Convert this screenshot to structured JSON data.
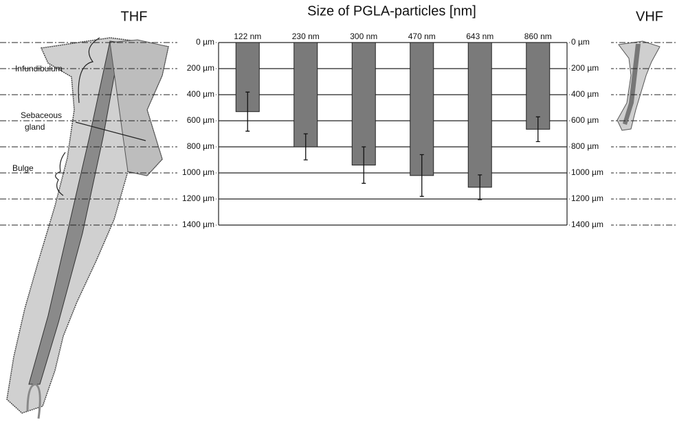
{
  "chart_data": {
    "type": "bar",
    "title": "Size of PGLA-particles [nm]",
    "categories": [
      "122 nm",
      "230 nm",
      "300 nm",
      "470 nm",
      "643 nm",
      "860 nm"
    ],
    "values": [
      530,
      800,
      940,
      1020,
      1110,
      665
    ],
    "errors": [
      150,
      100,
      140,
      160,
      95,
      95
    ],
    "color": "#7a7a7a",
    "ylim": [
      0,
      1400
    ],
    "y_inverted": true,
    "yticks": [
      {
        "value": 0,
        "label": "0 µm"
      },
      {
        "value": 200,
        "label": "200 µm"
      },
      {
        "value": 400,
        "label": "400 µm"
      },
      {
        "value": 600,
        "label": "600 µm"
      },
      {
        "value": 800,
        "label": "800 µm"
      },
      {
        "value": 1000,
        "label": "1000 µm"
      },
      {
        "value": 1200,
        "label": "1200 µm"
      },
      {
        "value": 1400,
        "label": "1400 µm"
      }
    ],
    "grid": true,
    "annotations": {
      "left_follicle": "THF",
      "right_follicle": "VHF",
      "infundibulum": "Infundibulum",
      "sebaceous": "Sebaceous",
      "gland": "gland",
      "bulge": "Bulge"
    }
  }
}
